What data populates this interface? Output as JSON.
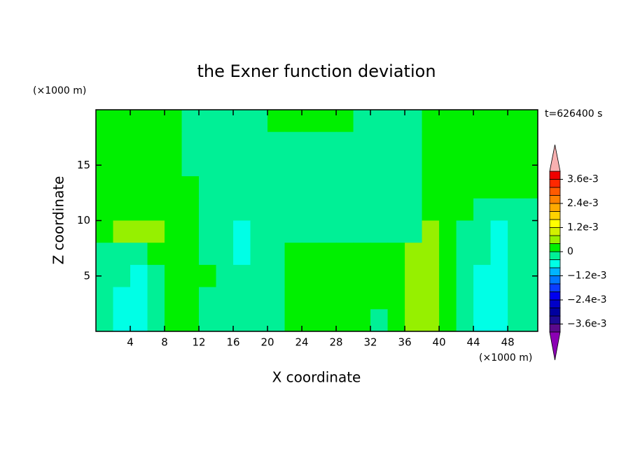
{
  "chart_data": {
    "type": "contour",
    "title": "the Exner function deviation",
    "xlabel": "X coordinate",
    "ylabel": "Z coordinate",
    "x_unit": "(×1000 m)",
    "y_unit": "(×1000 m)",
    "time_label": "t=626400 s",
    "xlim": [
      0,
      51.5
    ],
    "ylim": [
      0,
      20
    ],
    "xticks": [
      4,
      8,
      12,
      16,
      20,
      24,
      28,
      32,
      36,
      40,
      44,
      48
    ],
    "yticks": [
      5,
      10,
      15
    ],
    "x": [
      1,
      3,
      5,
      7,
      9,
      11,
      13,
      15,
      17,
      19,
      21,
      23,
      25,
      27,
      29,
      31,
      33,
      35,
      37,
      39,
      41,
      43,
      45,
      47,
      49,
      51
    ],
    "y": [
      19,
      17,
      15,
      13,
      11,
      9,
      7,
      5,
      3,
      1
    ],
    "values": [
      [
        0.0002,
        0.0002,
        0.0002,
        0.0002,
        0.0002,
        -0.0002,
        -0.0002,
        -0.0002,
        -0.0002,
        -0.0002,
        0.0002,
        0.0002,
        0.0002,
        0.0002,
        0.0002,
        -0.0002,
        -0.0002,
        -0.0002,
        -0.0002,
        0.0002,
        0.0002,
        0.0002,
        0.0002,
        0.0002,
        0.0002,
        0.0002
      ],
      [
        0.0002,
        0.0002,
        0.0002,
        0.0002,
        0.0002,
        -0.0002,
        -0.0002,
        -0.0002,
        -0.0002,
        -0.0002,
        -0.0002,
        -0.0002,
        -0.0002,
        -0.0002,
        -0.0002,
        -0.0002,
        -0.0002,
        -0.0002,
        -0.0002,
        0.0002,
        0.0002,
        0.0002,
        0.0002,
        0.0002,
        0.0002,
        0.0002
      ],
      [
        0.0002,
        0.0002,
        0.0002,
        0.0002,
        0.0002,
        -0.0002,
        -0.0002,
        -0.0002,
        -0.0002,
        -0.0002,
        -0.0002,
        -0.0002,
        -0.0002,
        -0.0002,
        -0.0002,
        -0.0002,
        -0.0002,
        -0.0002,
        -0.0002,
        0.0002,
        0.0002,
        0.0002,
        0.0002,
        0.0002,
        0.0002,
        0.0002
      ],
      [
        0.0002,
        0.0002,
        0.0002,
        0.0002,
        0.0002,
        0.0002,
        -0.0002,
        -0.0002,
        -0.0002,
        -0.0002,
        -0.0002,
        -0.0002,
        -0.0002,
        -0.0002,
        -0.0002,
        -0.0002,
        -0.0002,
        -0.0002,
        -0.0002,
        0.0002,
        0.0002,
        0.0002,
        0.0002,
        0.0002,
        0.0002,
        0.0002
      ],
      [
        0.0002,
        0.0002,
        0.0002,
        0.0002,
        0.0002,
        0.0002,
        -0.0002,
        -0.0002,
        -0.0002,
        -0.0002,
        -0.0002,
        -0.0002,
        -0.0002,
        -0.0002,
        -0.0002,
        -0.0002,
        -0.0002,
        -0.0002,
        -0.0002,
        0.0002,
        0.0002,
        0.0002,
        -0.0002,
        -0.0002,
        -0.0002,
        -0.0002
      ],
      [
        0.0002,
        0.0006,
        0.0006,
        0.0006,
        0.0002,
        0.0002,
        -0.0002,
        -0.0002,
        -0.0006,
        -0.0002,
        -0.0002,
        -0.0002,
        -0.0002,
        -0.0002,
        -0.0002,
        -0.0002,
        -0.0002,
        -0.0002,
        -0.0002,
        0.0006,
        0.0002,
        -0.0002,
        -0.0002,
        -0.0006,
        -0.0002,
        -0.0002
      ],
      [
        -0.0002,
        -0.0002,
        -0.0002,
        0.0002,
        0.0002,
        0.0002,
        -0.0002,
        -0.0002,
        -0.0006,
        -0.0002,
        -0.0002,
        0.0002,
        0.0002,
        0.0002,
        0.0002,
        0.0002,
        0.0002,
        0.0002,
        0.0006,
        0.0006,
        0.0002,
        -0.0002,
        -0.0002,
        -0.0006,
        -0.0002,
        -0.0002
      ],
      [
        -0.0002,
        -0.0002,
        -0.0006,
        -0.0002,
        0.0002,
        0.0002,
        0.0002,
        -0.0002,
        -0.0002,
        -0.0002,
        -0.0002,
        0.0002,
        0.0002,
        0.0002,
        0.0002,
        0.0002,
        0.0002,
        0.0002,
        0.0006,
        0.0006,
        0.0002,
        -0.0002,
        -0.0006,
        -0.0006,
        -0.0002,
        -0.0002
      ],
      [
        -0.0002,
        -0.0006,
        -0.0006,
        -0.0002,
        0.0002,
        0.0002,
        -0.0002,
        -0.0002,
        -0.0002,
        -0.0002,
        -0.0002,
        0.0002,
        0.0002,
        0.0002,
        0.0002,
        0.0002,
        0.0002,
        0.0002,
        0.0006,
        0.0006,
        0.0002,
        -0.0002,
        -0.0006,
        -0.0006,
        -0.0002,
        -0.0002
      ],
      [
        -0.0002,
        -0.0006,
        -0.0006,
        -0.0002,
        0.0002,
        0.0002,
        -0.0002,
        -0.0002,
        -0.0002,
        -0.0002,
        -0.0002,
        0.0002,
        0.0002,
        0.0002,
        0.0002,
        0.0002,
        -0.0002,
        0.0002,
        0.0006,
        0.0006,
        0.0002,
        -0.0002,
        -0.0006,
        -0.0006,
        -0.0002,
        -0.0002
      ]
    ],
    "colorbar": {
      "levels": [
        -0.004,
        -0.0036,
        -0.0032,
        -0.0028,
        -0.0024,
        -0.002,
        -0.0016,
        -0.0012,
        -0.0008,
        -0.0004,
        0,
        0.0004,
        0.0008,
        0.0012,
        0.0016,
        0.002,
        0.0024,
        0.0028,
        0.0032,
        0.0036,
        0.004
      ],
      "colors": [
        "#5a0a8c",
        "#1e0a96",
        "#0000a0",
        "#0000c8",
        "#0000f0",
        "#0a3cff",
        "#0078ff",
        "#00b4ff",
        "#00ffe6",
        "#00f096",
        "#00f000",
        "#96f000",
        "#d2f000",
        "#ffff00",
        "#ffd200",
        "#ffaa00",
        "#ff8200",
        "#ff5a00",
        "#ff2800",
        "#f00000"
      ],
      "under_color": "#8c00b4",
      "over_color": "#f8b0b0",
      "ticks": [
        {
          "value": 0.0036,
          "label": "3.6e-3"
        },
        {
          "value": 0.0024,
          "label": "2.4e-3"
        },
        {
          "value": 0.0012,
          "label": "1.2e-3"
        },
        0,
        {
          "value": -0.0012,
          "label": "−1.2e-3"
        },
        {
          "value": -0.0024,
          "label": "−2.4e-3"
        },
        {
          "value": -0.0036,
          "label": "−3.6e-3"
        }
      ]
    }
  }
}
